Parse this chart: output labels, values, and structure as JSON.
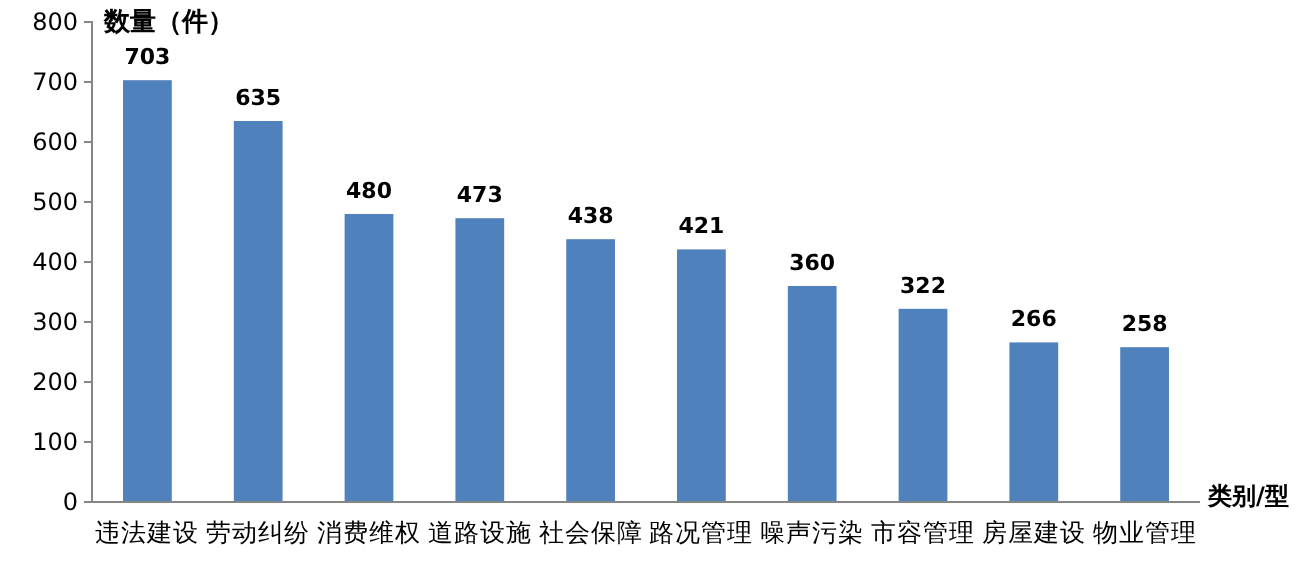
{
  "chart_data": {
    "type": "bar",
    "xlabel": "类别/型",
    "ylabel": "数量（件）",
    "categories": [
      "违法建设",
      "劳动纠纷",
      "消费维权",
      "道路设施",
      "社会保障",
      "路况管理",
      "噪声污染",
      "市容管理",
      "房屋建设",
      "物业管理"
    ],
    "values": [
      703,
      635,
      480,
      473,
      438,
      421,
      360,
      322,
      266,
      258
    ],
    "color": "#4f81bd",
    "ylim": [
      0,
      800
    ],
    "yticks": [
      0,
      100,
      200,
      300,
      400,
      500,
      600,
      700,
      800
    ],
    "grid": false,
    "data_labels": true
  }
}
